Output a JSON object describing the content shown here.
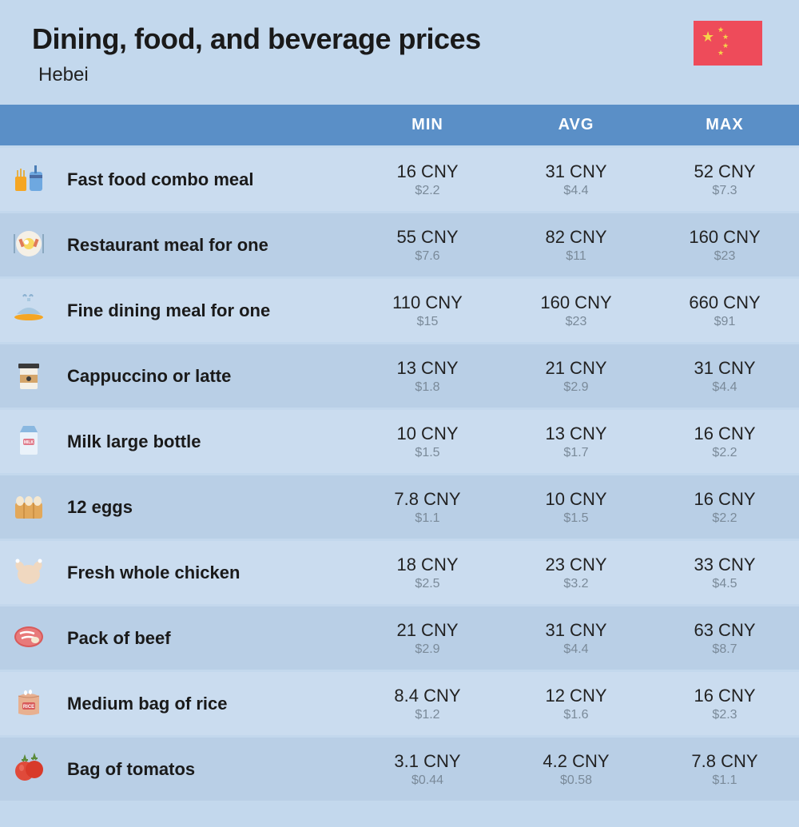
{
  "header": {
    "title": "Dining, food, and beverage prices",
    "subtitle": "Hebei"
  },
  "columns": {
    "min": "MIN",
    "avg": "AVG",
    "max": "MAX"
  },
  "colors": {
    "page_bg": "#c3d8ed",
    "header_bg": "#5a8fc7",
    "header_text": "#ffffff",
    "row_even": "#cadcef",
    "row_odd": "#b9cfe6",
    "primary_text": "#1a1a1a",
    "cny_text": "#222222",
    "usd_text": "#7a8a99",
    "flag_bg": "#ee4b5a",
    "flag_star": "#f5d44a"
  },
  "rows": [
    {
      "icon": "fastfood",
      "label": "Fast food combo meal",
      "min_cny": "16 CNY",
      "min_usd": "$2.2",
      "avg_cny": "31 CNY",
      "avg_usd": "$4.4",
      "max_cny": "52 CNY",
      "max_usd": "$7.3"
    },
    {
      "icon": "restaurant",
      "label": "Restaurant meal for one",
      "min_cny": "55 CNY",
      "min_usd": "$7.6",
      "avg_cny": "82 CNY",
      "avg_usd": "$11",
      "max_cny": "160 CNY",
      "max_usd": "$23"
    },
    {
      "icon": "finedining",
      "label": "Fine dining meal for one",
      "min_cny": "110 CNY",
      "min_usd": "$15",
      "avg_cny": "160 CNY",
      "avg_usd": "$23",
      "max_cny": "660 CNY",
      "max_usd": "$91"
    },
    {
      "icon": "coffee",
      "label": "Cappuccino or latte",
      "min_cny": "13 CNY",
      "min_usd": "$1.8",
      "avg_cny": "21 CNY",
      "avg_usd": "$2.9",
      "max_cny": "31 CNY",
      "max_usd": "$4.4"
    },
    {
      "icon": "milk",
      "label": "Milk large bottle",
      "min_cny": "10 CNY",
      "min_usd": "$1.5",
      "avg_cny": "13 CNY",
      "avg_usd": "$1.7",
      "max_cny": "16 CNY",
      "max_usd": "$2.2"
    },
    {
      "icon": "eggs",
      "label": "12 eggs",
      "min_cny": "7.8 CNY",
      "min_usd": "$1.1",
      "avg_cny": "10 CNY",
      "avg_usd": "$1.5",
      "max_cny": "16 CNY",
      "max_usd": "$2.2"
    },
    {
      "icon": "chicken",
      "label": "Fresh whole chicken",
      "min_cny": "18 CNY",
      "min_usd": "$2.5",
      "avg_cny": "23 CNY",
      "avg_usd": "$3.2",
      "max_cny": "33 CNY",
      "max_usd": "$4.5"
    },
    {
      "icon": "beef",
      "label": "Pack of beef",
      "min_cny": "21 CNY",
      "min_usd": "$2.9",
      "avg_cny": "31 CNY",
      "avg_usd": "$4.4",
      "max_cny": "63 CNY",
      "max_usd": "$8.7"
    },
    {
      "icon": "rice",
      "label": "Medium bag of rice",
      "min_cny": "8.4 CNY",
      "min_usd": "$1.2",
      "avg_cny": "12 CNY",
      "avg_usd": "$1.6",
      "max_cny": "16 CNY",
      "max_usd": "$2.3"
    },
    {
      "icon": "tomato",
      "label": "Bag of tomatos",
      "min_cny": "3.1 CNY",
      "min_usd": "$0.44",
      "avg_cny": "4.2 CNY",
      "avg_usd": "$0.58",
      "max_cny": "7.8 CNY",
      "max_usd": "$1.1"
    }
  ]
}
